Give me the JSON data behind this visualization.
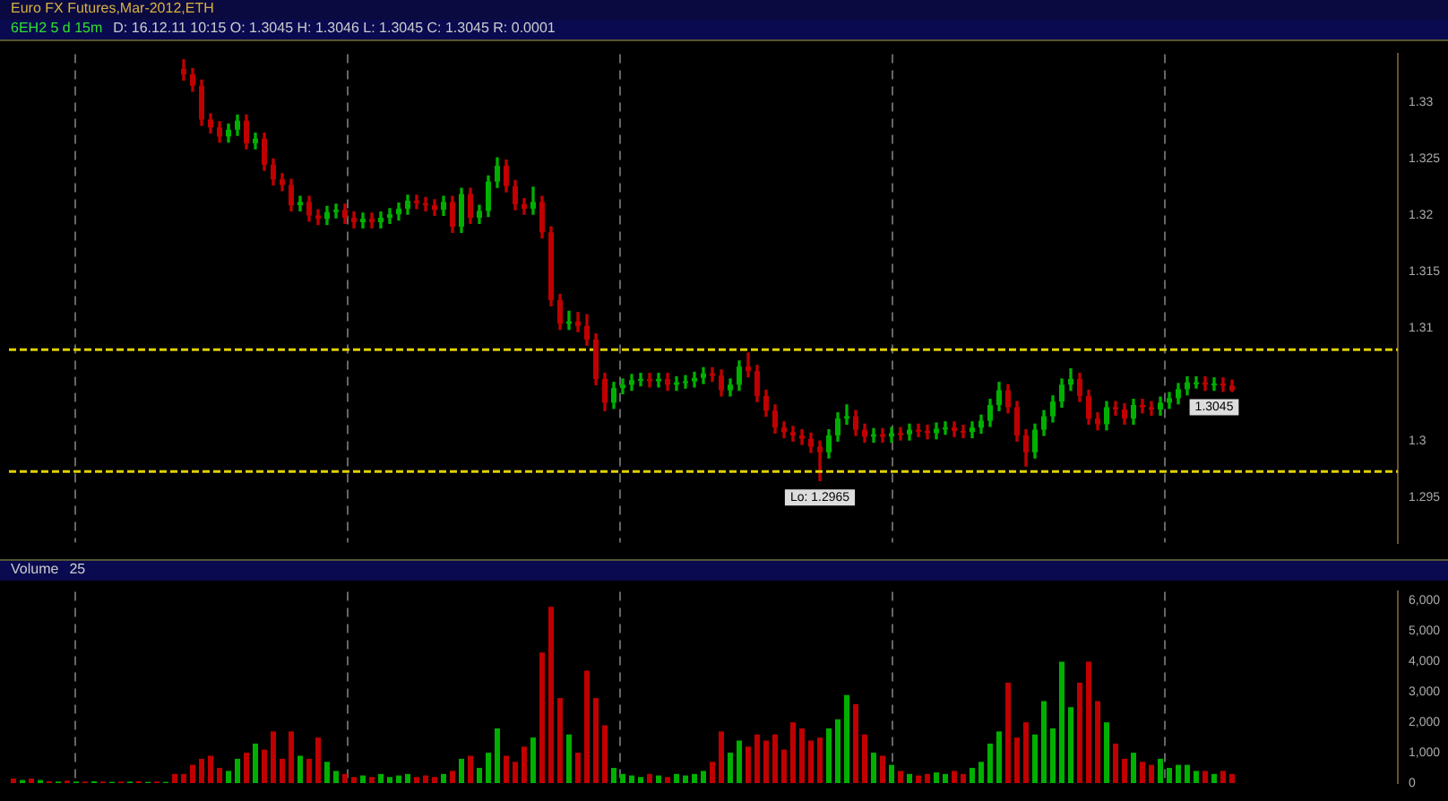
{
  "chart_data": [
    {
      "type": "candlestick",
      "title": "Euro FX Futures,Mar-2012,ETH",
      "subtitle": "6EH2 5 d 15m",
      "categories": [
        null,
        null,
        null,
        null,
        null,
        null,
        null,
        null,
        null,
        null,
        null,
        null,
        null,
        null,
        null,
        null,
        null,
        null,
        null,
        null,
        null,
        null,
        null,
        null,
        null,
        null,
        null,
        null,
        null,
        null,
        null,
        null,
        null,
        null,
        null,
        null,
        null,
        null,
        null,
        null,
        null,
        null,
        null,
        null,
        null,
        null,
        null,
        null,
        null,
        null,
        null,
        null,
        null,
        null,
        null,
        null,
        null,
        null,
        null,
        null,
        null,
        null,
        null,
        null,
        null,
        null,
        null,
        null,
        null,
        null,
        null,
        null,
        null,
        null,
        null,
        null,
        null,
        null,
        null,
        null,
        null,
        null,
        null,
        null,
        null,
        null,
        null,
        null,
        null,
        null,
        null,
        null,
        null,
        null,
        null,
        null,
        null,
        null,
        null,
        null,
        null,
        null,
        null,
        null,
        null,
        null,
        null,
        null,
        null,
        null,
        null,
        null,
        null,
        null,
        null,
        null,
        null,
        null,
        null,
        null,
        null,
        null,
        null,
        null,
        null,
        null,
        null,
        null,
        null,
        null,
        null,
        null,
        null,
        null,
        null,
        null,
        null,
        null,
        null,
        null,
        null,
        null,
        null,
        null,
        null,
        null,
        null,
        null,
        null,
        null,
        null,
        null,
        null,
        null,
        null
      ],
      "ohlc": [
        null,
        null,
        null,
        null,
        null,
        null,
        null,
        null,
        null,
        null,
        null,
        null,
        null,
        null,
        null,
        null,
        null,
        null,
        null,
        [
          1.333,
          1.3338,
          1.332,
          1.3325
        ],
        [
          1.3325,
          1.333,
          1.331,
          1.3315
        ],
        [
          1.3315,
          1.332,
          1.328,
          1.3285
        ],
        [
          1.3285,
          1.329,
          1.3273,
          1.3278
        ],
        [
          1.3278,
          1.3283,
          1.3265,
          1.327
        ],
        [
          1.327,
          1.3281,
          1.3265,
          1.3276
        ],
        [
          1.3276,
          1.3289,
          1.3271,
          1.3284
        ],
        [
          1.3284,
          1.3289,
          1.3259,
          1.3264
        ],
        [
          1.3264,
          1.3273,
          1.3259,
          1.3268
        ],
        [
          1.3268,
          1.3273,
          1.324,
          1.3245
        ],
        [
          1.3245,
          1.325,
          1.3227,
          1.3232
        ],
        [
          1.3232,
          1.3237,
          1.3222,
          1.3227
        ],
        [
          1.3227,
          1.3232,
          1.3204,
          1.3209
        ],
        [
          1.3209,
          1.3217,
          1.3204,
          1.3212
        ],
        [
          1.3212,
          1.3217,
          1.3195,
          1.32
        ],
        [
          1.32,
          1.3205,
          1.3192,
          1.3197
        ],
        [
          1.3197,
          1.3208,
          1.3192,
          1.3203
        ],
        [
          1.3203,
          1.321,
          1.3198,
          1.3205
        ],
        [
          1.3205,
          1.321,
          1.3193,
          1.3198
        ],
        [
          1.3198,
          1.3203,
          1.3189,
          1.3194
        ],
        [
          1.3194,
          1.3202,
          1.3189,
          1.3197
        ],
        [
          1.3197,
          1.3202,
          1.3189,
          1.3194
        ],
        [
          1.3194,
          1.3203,
          1.3189,
          1.3198
        ],
        [
          1.3198,
          1.3206,
          1.3193,
          1.3201
        ],
        [
          1.3201,
          1.3211,
          1.3196,
          1.3206
        ],
        [
          1.3206,
          1.3218,
          1.3201,
          1.3213
        ],
        [
          1.3213,
          1.3218,
          1.3206,
          1.3211
        ],
        [
          1.3211,
          1.3216,
          1.3204,
          1.3209
        ],
        [
          1.3209,
          1.3214,
          1.32,
          1.3205
        ],
        [
          1.3205,
          1.3217,
          1.32,
          1.3212
        ],
        [
          1.3212,
          1.3217,
          1.3185,
          1.319
        ],
        [
          1.319,
          1.3224,
          1.3185,
          1.3219
        ],
        [
          1.3219,
          1.3224,
          1.3193,
          1.3198
        ],
        [
          1.3198,
          1.3209,
          1.3193,
          1.3204
        ],
        [
          1.3204,
          1.3235,
          1.3199,
          1.323
        ],
        [
          1.323,
          1.3251,
          1.3225,
          1.3244
        ],
        [
          1.3244,
          1.3249,
          1.3221,
          1.3226
        ],
        [
          1.3226,
          1.3231,
          1.3205,
          1.321
        ],
        [
          1.321,
          1.3215,
          1.3201,
          1.3206
        ],
        [
          1.3206,
          1.3225,
          1.3201,
          1.3212
        ],
        [
          1.3212,
          1.3217,
          1.318,
          1.3185
        ],
        [
          1.3185,
          1.319,
          1.312,
          1.3125
        ],
        [
          1.3125,
          1.313,
          1.3099,
          1.3104
        ],
        [
          1.3104,
          1.3115,
          1.3099,
          1.3106
        ],
        [
          1.3106,
          1.3114,
          1.3097,
          1.3102
        ],
        [
          1.3102,
          1.3112,
          1.3085,
          1.309
        ],
        [
          1.309,
          1.3095,
          1.305,
          1.3055
        ],
        [
          1.3055,
          1.306,
          1.3027,
          1.3034
        ],
        [
          1.3034,
          1.3052,
          1.3029,
          1.3047
        ],
        [
          1.3047,
          1.3055,
          1.3042,
          1.305
        ],
        [
          1.305,
          1.3059,
          1.3045,
          1.3054
        ],
        [
          1.3054,
          1.306,
          1.3049,
          1.3055
        ],
        [
          1.3055,
          1.306,
          1.3048,
          1.3053
        ],
        [
          1.3053,
          1.306,
          1.3048,
          1.3055
        ],
        [
          1.3055,
          1.306,
          1.3045,
          1.305
        ],
        [
          1.305,
          1.3057,
          1.3045,
          1.3052
        ],
        [
          1.3052,
          1.3058,
          1.3047,
          1.3053
        ],
        [
          1.3053,
          1.3061,
          1.3048,
          1.3056
        ],
        [
          1.3056,
          1.3065,
          1.3051,
          1.306
        ],
        [
          1.306,
          1.3065,
          1.3053,
          1.3058
        ],
        [
          1.3058,
          1.3063,
          1.304,
          1.3045
        ],
        [
          1.3045,
          1.3055,
          1.304,
          1.305
        ],
        [
          1.305,
          1.3071,
          1.3045,
          1.3066
        ],
        [
          1.3066,
          1.3078,
          1.3057,
          1.3062
        ],
        [
          1.3062,
          1.3067,
          1.3035,
          1.304
        ],
        [
          1.304,
          1.3045,
          1.3022,
          1.3027
        ],
        [
          1.3027,
          1.3032,
          1.3007,
          1.3012
        ],
        [
          1.3012,
          1.3017,
          1.3003,
          1.3008
        ],
        [
          1.3008,
          1.3013,
          1.3,
          1.3005
        ],
        [
          1.3005,
          1.301,
          1.2997,
          1.3002
        ],
        [
          1.3002,
          1.3007,
          1.299,
          1.2995
        ],
        [
          1.2995,
          1.3,
          1.2965,
          1.299
        ],
        [
          1.299,
          1.301,
          1.2985,
          1.3005
        ],
        [
          1.3005,
          1.3025,
          1.3,
          1.302
        ],
        [
          1.302,
          1.3032,
          1.3015,
          1.3022
        ],
        [
          1.3022,
          1.3027,
          1.3005,
          1.301
        ],
        [
          1.301,
          1.3015,
          1.2999,
          1.3004
        ],
        [
          1.3004,
          1.3011,
          1.2999,
          1.3006
        ],
        [
          1.3006,
          1.3011,
          1.2999,
          1.3004
        ],
        [
          1.3004,
          1.3012,
          1.2999,
          1.3007
        ],
        [
          1.3007,
          1.3012,
          1.3001,
          1.3006
        ],
        [
          1.3006,
          1.3015,
          1.3001,
          1.301
        ],
        [
          1.301,
          1.3015,
          1.3004,
          1.3009
        ],
        [
          1.3009,
          1.3014,
          1.3002,
          1.3007
        ],
        [
          1.3007,
          1.3016,
          1.3002,
          1.3011
        ],
        [
          1.3011,
          1.3017,
          1.3006,
          1.3012
        ],
        [
          1.3012,
          1.3017,
          1.3004,
          1.3009
        ],
        [
          1.3009,
          1.3014,
          1.3003,
          1.3008
        ],
        [
          1.3008,
          1.3017,
          1.3003,
          1.3012
        ],
        [
          1.3012,
          1.3023,
          1.3007,
          1.3018
        ],
        [
          1.3018,
          1.3037,
          1.3013,
          1.3032
        ],
        [
          1.3032,
          1.3052,
          1.3027,
          1.3045
        ],
        [
          1.3045,
          1.305,
          1.3025,
          1.303
        ],
        [
          1.303,
          1.3035,
          1.3,
          1.3005
        ],
        [
          1.3005,
          1.301,
          1.2978,
          1.299
        ],
        [
          1.299,
          1.3015,
          1.2985,
          1.301
        ],
        [
          1.301,
          1.3027,
          1.3005,
          1.3022
        ],
        [
          1.3022,
          1.304,
          1.3017,
          1.3035
        ],
        [
          1.3035,
          1.3055,
          1.303,
          1.305
        ],
        [
          1.305,
          1.3064,
          1.3045,
          1.3055
        ],
        [
          1.3055,
          1.306,
          1.3035,
          1.304
        ],
        [
          1.304,
          1.3045,
          1.3015,
          1.302
        ],
        [
          1.302,
          1.3025,
          1.301,
          1.3015
        ],
        [
          1.3015,
          1.3035,
          1.301,
          1.303
        ],
        [
          1.303,
          1.3035,
          1.3023,
          1.3028
        ],
        [
          1.3028,
          1.3033,
          1.3015,
          1.302
        ],
        [
          1.302,
          1.3037,
          1.3015,
          1.3032
        ],
        [
          1.3032,
          1.3037,
          1.3025,
          1.303
        ],
        [
          1.303,
          1.3035,
          1.3023,
          1.3028
        ],
        [
          1.3028,
          1.3039,
          1.3023,
          1.3034
        ],
        [
          1.3034,
          1.3043,
          1.3029,
          1.3038
        ],
        [
          1.3038,
          1.3051,
          1.3033,
          1.3046
        ],
        [
          1.3046,
          1.3057,
          1.3041,
          1.3052
        ],
        [
          1.3052,
          1.3057,
          1.3047,
          1.3052
        ],
        [
          1.3052,
          1.3057,
          1.3045,
          1.305
        ],
        [
          1.305,
          1.3056,
          1.3045,
          1.3051
        ],
        [
          1.3051,
          1.3056,
          1.3044,
          1.3049
        ],
        [
          1.3049,
          1.3054,
          1.3044,
          1.3045
        ],
        null,
        null,
        null,
        null,
        null,
        null,
        null,
        null,
        null,
        null,
        null,
        null,
        null,
        null,
        null,
        null,
        null,
        null
      ],
      "ylim": [
        1.291,
        1.3343
      ],
      "yticks": [
        1.295,
        1.3,
        1.31,
        1.315,
        1.32,
        1.325,
        1.33
      ],
      "tick_labels": "y",
      "grid": false,
      "legend": false,
      "ref_lines": [
        {
          "axis": "y",
          "value": 1.3081,
          "color": "#e0d000",
          "line_style": "dashed"
        },
        {
          "axis": "y",
          "value": 1.2973,
          "color": "#e0d000",
          "line_style": "dashed"
        }
      ],
      "annotations": [
        "D: 16.12.11 10:15  O: 1.3045  H: 1.3046  L: 1.3045  C: 1.3045  R: 0.0001",
        {
          "text": "Lo: 1.2965",
          "y": 1.2965
        },
        {
          "text": "1.3045",
          "y": 1.3045
        }
      ]
    },
    {
      "type": "bar",
      "title": "Volume",
      "subtitle": "25",
      "categories": [
        null,
        null,
        null,
        null,
        null,
        null,
        null,
        null,
        null,
        null,
        null,
        null,
        null,
        null,
        null,
        null,
        null,
        null,
        null,
        null,
        null,
        null,
        null,
        null,
        null,
        null,
        null,
        null,
        null,
        null,
        null,
        null,
        null,
        null,
        null,
        null,
        null,
        null,
        null,
        null,
        null,
        null,
        null,
        null,
        null,
        null,
        null,
        null,
        null,
        null,
        null,
        null,
        null,
        null,
        null,
        null,
        null,
        null,
        null,
        null,
        null,
        null,
        null,
        null,
        null,
        null,
        null,
        null,
        null,
        null,
        null,
        null,
        null,
        null,
        null,
        null,
        null,
        null,
        null,
        null,
        null,
        null,
        null,
        null,
        null,
        null,
        null,
        null,
        null,
        null,
        null,
        null,
        null,
        null,
        null,
        null,
        null,
        null,
        null,
        null,
        null,
        null,
        null,
        null,
        null,
        null,
        null,
        null,
        null,
        null,
        null,
        null,
        null,
        null,
        null,
        null,
        null,
        null,
        null,
        null,
        null,
        null,
        null,
        null,
        null,
        null,
        null,
        null,
        null,
        null,
        null,
        null,
        null,
        null,
        null,
        null,
        null,
        null,
        null,
        null,
        null,
        null,
        null,
        null,
        null,
        null,
        null,
        null,
        null,
        null,
        null,
        null,
        null,
        null,
        null
      ],
      "values": [
        150,
        100,
        150,
        100,
        60,
        50,
        80,
        50,
        50,
        60,
        50,
        40,
        50,
        50,
        60,
        40,
        50,
        40,
        300,
        300,
        600,
        800,
        900,
        500,
        400,
        800,
        1000,
        1300,
        1100,
        1700,
        800,
        1700,
        900,
        800,
        1500,
        700,
        400,
        300,
        200,
        250,
        200,
        300,
        200,
        250,
        300,
        200,
        250,
        200,
        300,
        400,
        800,
        900,
        500,
        1000,
        1800,
        900,
        700,
        1200,
        1500,
        4300,
        5800,
        2800,
        1600,
        1000,
        3700,
        2800,
        1900,
        500,
        300,
        250,
        200,
        300,
        250,
        200,
        300,
        250,
        300,
        400,
        700,
        1700,
        1000,
        1400,
        1200,
        1600,
        1400,
        1600,
        1100,
        2000,
        1800,
        1400,
        1500,
        1800,
        2100,
        2900,
        2600,
        1600,
        1000,
        900,
        600,
        400,
        300,
        250,
        300,
        350,
        300,
        400,
        300,
        500,
        700,
        1300,
        1700,
        3300,
        1500,
        2000,
        1600,
        2700,
        1800,
        4000,
        2500,
        3300,
        4000,
        2700,
        2000,
        1300,
        800,
        1000,
        700,
        600,
        800,
        500,
        600,
        600,
        400,
        400,
        300,
        400,
        300,
        null,
        null,
        null,
        null,
        null,
        null,
        null,
        null,
        null,
        null,
        null,
        null,
        null,
        null,
        null,
        null,
        null,
        null
      ],
      "colors": [
        "#c00000",
        "#00b000",
        "#c00000",
        "#00b000",
        "#c00000",
        "#00b000",
        "#c00000",
        "#00b000",
        "#c00000",
        "#00b000",
        "#c00000",
        "#00b000",
        "#c00000",
        "#00b000",
        "#c00000",
        "#00b000",
        "#c00000",
        "#00b000",
        "#c00000",
        "#c00000",
        "#c00000",
        "#c00000",
        "#c00000",
        "#c00000",
        "#00b000",
        "#00b000",
        "#c00000",
        "#00b000",
        "#c00000",
        "#c00000",
        "#c00000",
        "#c00000",
        "#00b000",
        "#c00000",
        "#c00000",
        "#00b000",
        "#00b000",
        "#c00000",
        "#c00000",
        "#00b000",
        "#c00000",
        "#00b000",
        "#00b000",
        "#00b000",
        "#00b000",
        "#c00000",
        "#c00000",
        "#c00000",
        "#00b000",
        "#c00000",
        "#00b000",
        "#c00000",
        "#00b000",
        "#00b000",
        "#00b000",
        "#c00000",
        "#c00000",
        "#c00000",
        "#00b000",
        "#c00000",
        "#c00000",
        "#c00000",
        "#00b000",
        "#c00000",
        "#c00000",
        "#c00000",
        "#c00000",
        "#00b000",
        "#00b000",
        "#00b000",
        "#00b000",
        "#c00000",
        "#00b000",
        "#c00000",
        "#00b000",
        "#00b000",
        "#00b000",
        "#00b000",
        "#c00000",
        "#c00000",
        "#00b000",
        "#00b000",
        "#c00000",
        "#c00000",
        "#c00000",
        "#c00000",
        "#c00000",
        "#c00000",
        "#c00000",
        "#c00000",
        "#c00000",
        "#00b000",
        "#00b000",
        "#00b000",
        "#c00000",
        "#c00000",
        "#00b000",
        "#c00000",
        "#00b000",
        "#c00000",
        "#00b000",
        "#c00000",
        "#c00000",
        "#00b000",
        "#00b000",
        "#c00000",
        "#c00000",
        "#00b000",
        "#00b000",
        "#00b000",
        "#00b000",
        "#c00000",
        "#c00000",
        "#c00000",
        "#00b000",
        "#00b000",
        "#00b000",
        "#00b000",
        "#00b000",
        "#c00000",
        "#c00000",
        "#c00000",
        "#00b000",
        "#c00000",
        "#c00000",
        "#00b000",
        "#c00000",
        "#c00000",
        "#00b000",
        "#00b000",
        "#00b000",
        "#00b000",
        "#00b000",
        "#c00000",
        "#00b000",
        "#c00000",
        "#c00000",
        null,
        null,
        null,
        null,
        null,
        null,
        null,
        null,
        null,
        null,
        null,
        null,
        null,
        null,
        null,
        null,
        null,
        null
      ],
      "ylim": [
        0,
        6300
      ],
      "yticks": [
        0,
        {
          "value": 1000,
          "label": "1,000"
        },
        {
          "value": 2000,
          "label": "2,000"
        },
        {
          "value": 3000,
          "label": "3,000"
        },
        {
          "value": 4000,
          "label": "4,000"
        },
        {
          "value": 5000,
          "label": "5,000"
        },
        {
          "value": 6000,
          "label": "6,000"
        }
      ],
      "tick_labels": "y",
      "grid": false,
      "legend": false
    }
  ]
}
